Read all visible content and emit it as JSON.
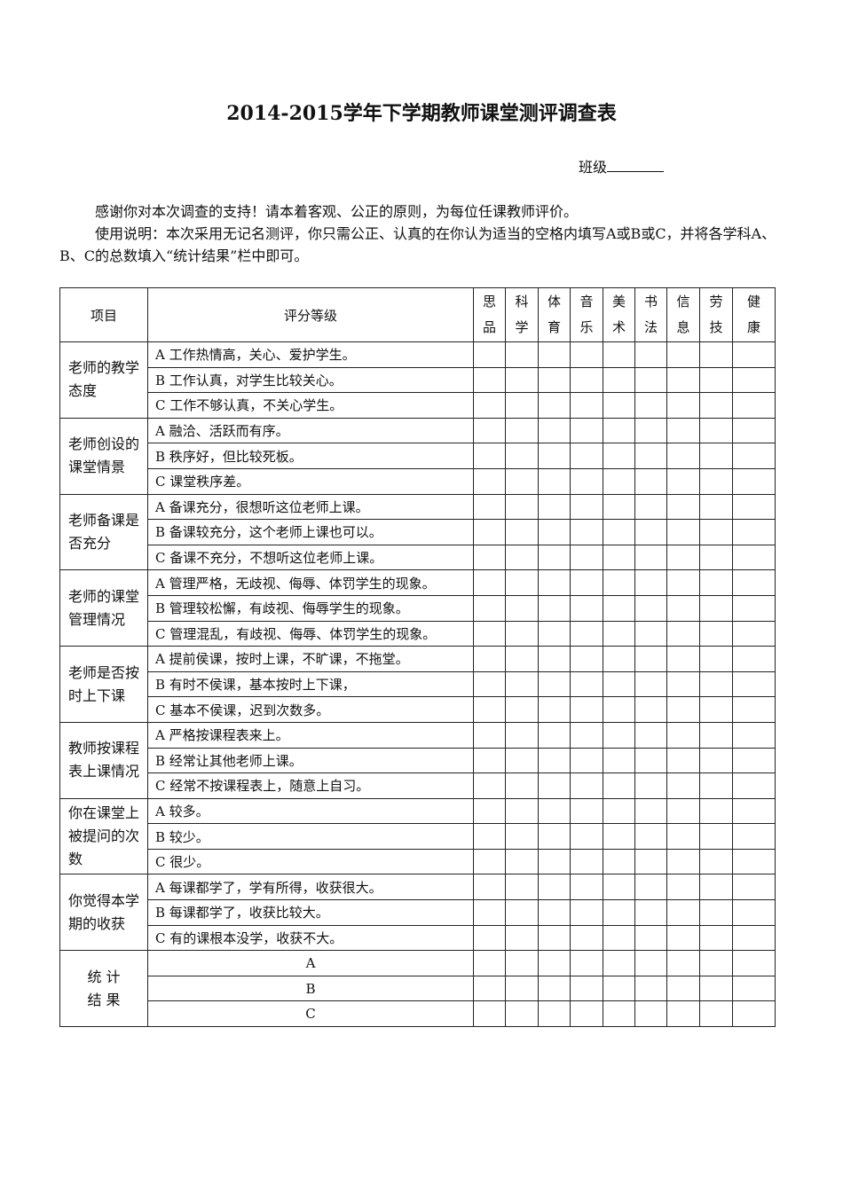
{
  "title": "2014-2015学年下学期教师课堂测评调查表",
  "class_label": "班级",
  "intro": [
    "感谢你对本次调查的支持！请本着客观、公正的原则，为每位任课教师评价。",
    "使用说明：本次采用无记名测评，你只需公正、认真的在你认为适当的空格内填写A或B或C，并将各学科A、B、C的总数填入“统计结果”栏中即可。"
  ],
  "table": {
    "header_item": "项目",
    "header_criteria": "评分等级",
    "subjects": [
      [
        "思",
        "品"
      ],
      [
        "科",
        "学"
      ],
      [
        "体",
        "育"
      ],
      [
        "音",
        "乐"
      ],
      [
        "美",
        "术"
      ],
      [
        "书",
        "法"
      ],
      [
        "信",
        "息"
      ],
      [
        "劳",
        "技"
      ],
      [
        "健",
        "康"
      ]
    ],
    "groups": [
      {
        "item": "老师的教学态度",
        "options": [
          "A 工作热情高，关心、爱护学生。",
          "B 工作认真，对学生比较关心。",
          "C 工作不够认真，不关心学生。"
        ]
      },
      {
        "item": "老师创设的课堂情景",
        "options": [
          "A  融洽、活跃而有序。",
          "B  秩序好，但比较死板。",
          "C  课堂秩序差。"
        ]
      },
      {
        "item": "老师备课是否充分",
        "options": [
          "A 备课充分，很想听这位老师上课。",
          "B 备课较充分，这个老师上课也可以。",
          "C 备课不充分，不想听这位老师上课。"
        ]
      },
      {
        "item": "老师的课堂管理情况",
        "options": [
          "A  管理严格，无歧视、侮辱、体罚学生的现象。",
          "B  管理较松懈，有歧视、侮辱学生的现象。",
          "C  管理混乱，有歧视、侮辱、体罚学生的现象。"
        ]
      },
      {
        "item": "老师是否按时上下课",
        "options": [
          "A  提前侯课，按时上课，不旷课，不拖堂。",
          "B  有时不侯课，基本按时上下课，",
          "C  基本不侯课，迟到次数多。"
        ]
      },
      {
        "item": "教师按课程表上课情况",
        "options": [
          "A  严格按课程表来上。",
          "B  经常让其他老师上课。",
          "C 经常不按课程表上，随意上自习。"
        ]
      },
      {
        "item": "你在课堂上被提问的次数",
        "options": [
          "A  较多。",
          "B  较少。",
          "C  很少。"
        ]
      },
      {
        "item": "你觉得本学期的收获",
        "options": [
          "A  每课都学了，学有所得，收获很大。",
          "B  每课都学了，收获比较大。",
          "C  有的课根本没学，收获不大。"
        ]
      }
    ],
    "stats": {
      "label_line1": "统 计",
      "label_line2": "结 果",
      "rows": [
        "A",
        "B",
        "C"
      ]
    }
  }
}
